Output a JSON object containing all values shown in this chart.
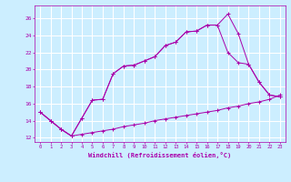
{
  "xlabel": "Windchill (Refroidissement éolien,°C)",
  "bg_color": "#cceeff",
  "grid_color": "#ffffff",
  "line_color": "#aa00aa",
  "x_values": [
    0,
    1,
    2,
    3,
    4,
    5,
    6,
    7,
    8,
    9,
    10,
    11,
    12,
    13,
    14,
    15,
    16,
    17,
    18,
    19,
    20,
    21,
    22,
    23
  ],
  "line1": [
    15.0,
    14.0,
    13.0,
    12.2,
    14.3,
    16.4,
    16.5,
    19.5,
    20.4,
    20.5,
    21.0,
    21.5,
    22.8,
    23.2,
    24.4,
    24.5,
    25.2,
    25.2,
    26.5,
    24.2,
    20.6,
    18.5,
    17.0,
    16.8
  ],
  "line2": [
    15.0,
    14.0,
    13.0,
    12.2,
    12.4,
    12.6,
    12.8,
    13.0,
    13.3,
    13.5,
    13.7,
    14.0,
    14.2,
    14.4,
    14.6,
    14.8,
    15.0,
    15.2,
    15.5,
    15.7,
    16.0,
    16.2,
    16.5,
    17.0
  ],
  "line3": [
    15.0,
    14.0,
    13.0,
    12.2,
    14.3,
    16.4,
    16.5,
    19.5,
    20.4,
    20.5,
    21.0,
    21.5,
    22.8,
    23.2,
    24.4,
    24.5,
    25.2,
    25.2,
    22.0,
    20.8,
    20.6,
    18.5,
    17.0,
    16.8
  ],
  "ylim": [
    11.5,
    27.5
  ],
  "xlim": [
    -0.5,
    23.5
  ],
  "yticks": [
    12,
    14,
    16,
    18,
    20,
    22,
    24,
    26
  ],
  "ytick_labels": [
    "12",
    "14",
    "16",
    "18",
    "20",
    "22",
    "24",
    "26"
  ]
}
